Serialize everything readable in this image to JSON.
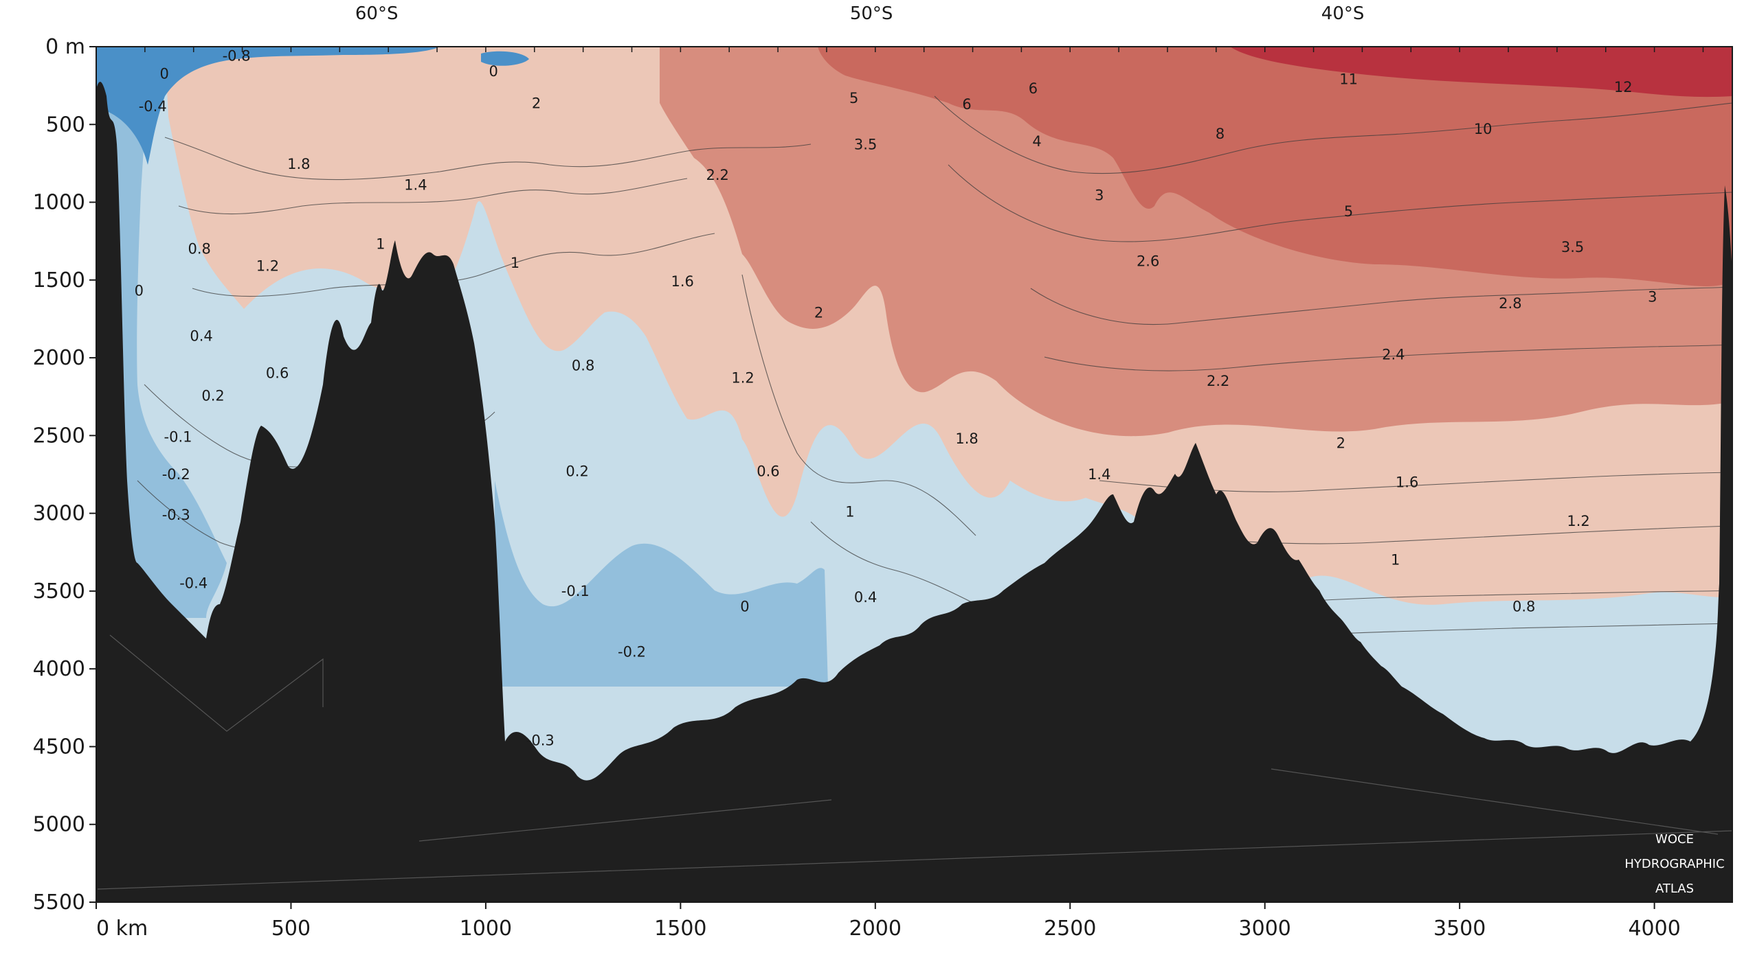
{
  "chart_data": {
    "type": "heatmap",
    "title": "",
    "xlabel": "",
    "ylabel": "",
    "x_unit": "km",
    "y_unit": "m",
    "xlim": [
      0,
      4200
    ],
    "ylim": [
      5500,
      0
    ],
    "x_ticks": [
      0,
      500,
      1000,
      1500,
      2000,
      2500,
      3000,
      3500,
      4000
    ],
    "x_tick_labels": [
      "0 km",
      "500",
      "1000",
      "1500",
      "2000",
      "2500",
      "3000",
      "3500",
      "4000"
    ],
    "y_ticks": [
      0,
      500,
      1000,
      1500,
      2000,
      2500,
      3000,
      3500,
      4000,
      4500,
      5000,
      5500
    ],
    "y_tick_labels": [
      "0 m",
      "500",
      "1000",
      "1500",
      "2000",
      "2500",
      "3000",
      "3500",
      "4000",
      "4500",
      "5000",
      "5500"
    ],
    "latitude_labels": [
      {
        "text": "60°S",
        "x_km": 720
      },
      {
        "text": "50°S",
        "x_km": 1990
      },
      {
        "text": "40°S",
        "x_km": 3200
      }
    ],
    "credit": [
      "WOCE",
      "HYDROGRAPHIC",
      "ATLAS"
    ],
    "colors": {
      "very_cold": "#4a90c8",
      "cold": "#93bfdc",
      "cool": "#c7dde9",
      "mild": "#ecc7b7",
      "warm": "#d78d7e",
      "warmer": "#c9695e",
      "hot": "#b8323f",
      "seafloor": "#1f1f1f"
    },
    "contour_labels": [
      {
        "value": "-0.8",
        "x": 360,
        "y": 60
      },
      {
        "value": "0",
        "x": 175,
        "y": 175
      },
      {
        "value": "-0.4",
        "x": 145,
        "y": 385
      },
      {
        "value": "0",
        "x": 1020,
        "y": 160
      },
      {
        "value": "2",
        "x": 1130,
        "y": 365
      },
      {
        "value": "1.8",
        "x": 520,
        "y": 755
      },
      {
        "value": "1.4",
        "x": 820,
        "y": 890
      },
      {
        "value": "1",
        "x": 730,
        "y": 1270
      },
      {
        "value": "0.8",
        "x": 265,
        "y": 1300
      },
      {
        "value": "1.2",
        "x": 440,
        "y": 1410
      },
      {
        "value": "0",
        "x": 110,
        "y": 1570
      },
      {
        "value": "0.4",
        "x": 270,
        "y": 1860
      },
      {
        "value": "0.6",
        "x": 465,
        "y": 2100
      },
      {
        "value": "0.2",
        "x": 300,
        "y": 2245
      },
      {
        "value": "-0.1",
        "x": 210,
        "y": 2510
      },
      {
        "value": "-0.2",
        "x": 205,
        "y": 2750
      },
      {
        "value": "-0.3",
        "x": 205,
        "y": 3010
      },
      {
        "value": "-0.4",
        "x": 250,
        "y": 3450
      },
      {
        "value": "1",
        "x": 1075,
        "y": 1390
      },
      {
        "value": "0.8",
        "x": 1250,
        "y": 2050
      },
      {
        "value": "0.2",
        "x": 1235,
        "y": 2730
      },
      {
        "value": "-0.1",
        "x": 1230,
        "y": 3500
      },
      {
        "value": "-0.2",
        "x": 1375,
        "y": 3890
      },
      {
        "value": "-0.3",
        "x": 1140,
        "y": 4460
      },
      {
        "value": "0",
        "x": 1665,
        "y": 3600
      },
      {
        "value": "1.6",
        "x": 1505,
        "y": 1510
      },
      {
        "value": "1.2",
        "x": 1660,
        "y": 2130
      },
      {
        "value": "0.6",
        "x": 1725,
        "y": 2730
      },
      {
        "value": "2.2",
        "x": 1595,
        "y": 825
      },
      {
        "value": "2",
        "x": 1855,
        "y": 1710
      },
      {
        "value": "1",
        "x": 1935,
        "y": 2990
      },
      {
        "value": "0.4",
        "x": 1975,
        "y": 3540
      },
      {
        "value": "5",
        "x": 1945,
        "y": 330
      },
      {
        "value": "3.5",
        "x": 1975,
        "y": 630
      },
      {
        "value": "6",
        "x": 2235,
        "y": 370
      },
      {
        "value": "6",
        "x": 2405,
        "y": 270
      },
      {
        "value": "4",
        "x": 2415,
        "y": 610
      },
      {
        "value": "8",
        "x": 2885,
        "y": 560
      },
      {
        "value": "3",
        "x": 2575,
        "y": 955
      },
      {
        "value": "2.6",
        "x": 2700,
        "y": 1380
      },
      {
        "value": "2.2",
        "x": 2880,
        "y": 2150
      },
      {
        "value": "1.8",
        "x": 2235,
        "y": 2520
      },
      {
        "value": "1.4",
        "x": 2575,
        "y": 2750
      },
      {
        "value": "2",
        "x": 3195,
        "y": 2550
      },
      {
        "value": "1.6",
        "x": 3365,
        "y": 2800
      },
      {
        "value": "1.2",
        "x": 3805,
        "y": 3050
      },
      {
        "value": "1",
        "x": 3335,
        "y": 3300
      },
      {
        "value": "0.8",
        "x": 3665,
        "y": 3600
      },
      {
        "value": "11",
        "x": 3215,
        "y": 210
      },
      {
        "value": "10",
        "x": 3560,
        "y": 530
      },
      {
        "value": "12",
        "x": 3920,
        "y": 260
      },
      {
        "value": "5",
        "x": 3215,
        "y": 1060
      },
      {
        "value": "3.5",
        "x": 3790,
        "y": 1290
      },
      {
        "value": "2.8",
        "x": 3630,
        "y": 1650
      },
      {
        "value": "3",
        "x": 3995,
        "y": 1610
      },
      {
        "value": "2.4",
        "x": 3330,
        "y": 1980
      }
    ]
  }
}
